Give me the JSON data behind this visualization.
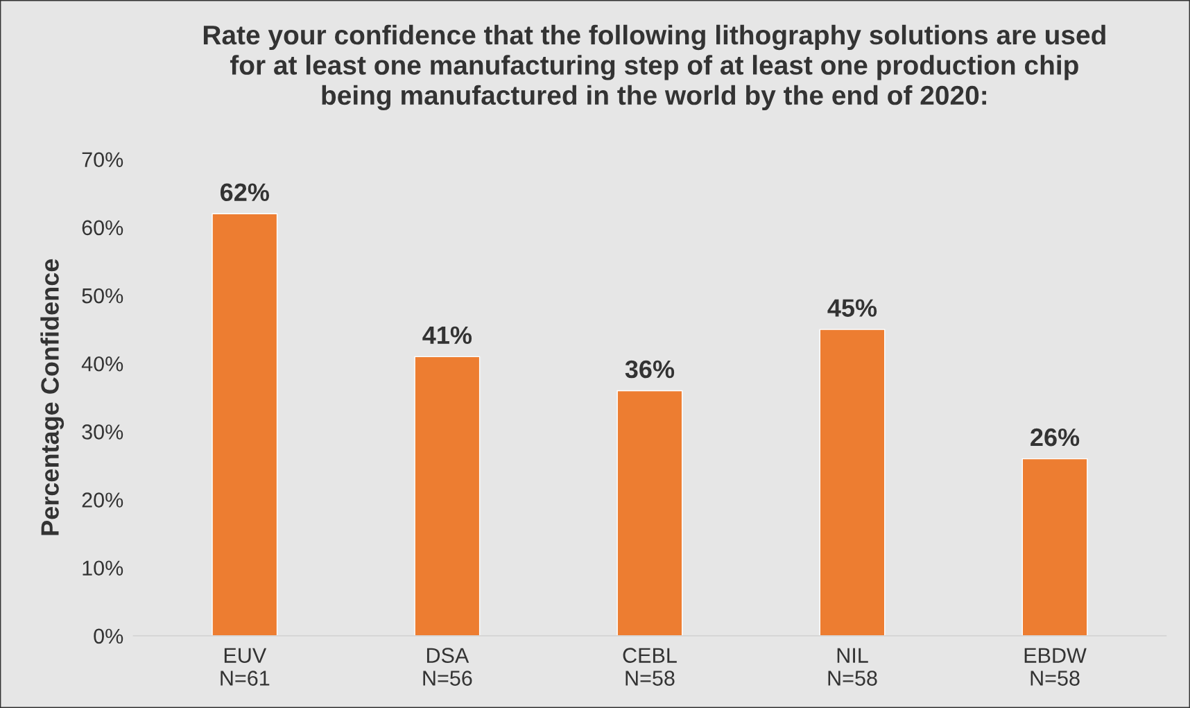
{
  "chart_data": {
    "type": "bar",
    "title": "Rate your confidence that the following lithography solutions are used\nfor at least one manufacturing step of at least one production chip\nbeing manufactured in the world by the end of 2020:",
    "ylabel": "Percentage Confidence",
    "categories": [
      "EUV\nN=61",
      "DSA\nN=56",
      "CEBL\nN=58",
      "NIL\nN=58",
      "EBDW\nN=58"
    ],
    "values": [
      62,
      41,
      36,
      45,
      26
    ],
    "value_labels": [
      "62%",
      "41%",
      "36%",
      "45%",
      "26%"
    ],
    "color": "#ed7d31",
    "ylim": [
      0,
      70
    ],
    "yticks": [
      {
        "value": 0,
        "label": "0%"
      },
      {
        "value": 10,
        "label": "10%"
      },
      {
        "value": 20,
        "label": "20%"
      },
      {
        "value": 30,
        "label": "30%"
      },
      {
        "value": 40,
        "label": "40%"
      },
      {
        "value": 50,
        "label": "50%"
      },
      {
        "value": 60,
        "label": "60%"
      },
      {
        "value": 70,
        "label": "70%"
      }
    ],
    "grid": false,
    "legend": false
  }
}
